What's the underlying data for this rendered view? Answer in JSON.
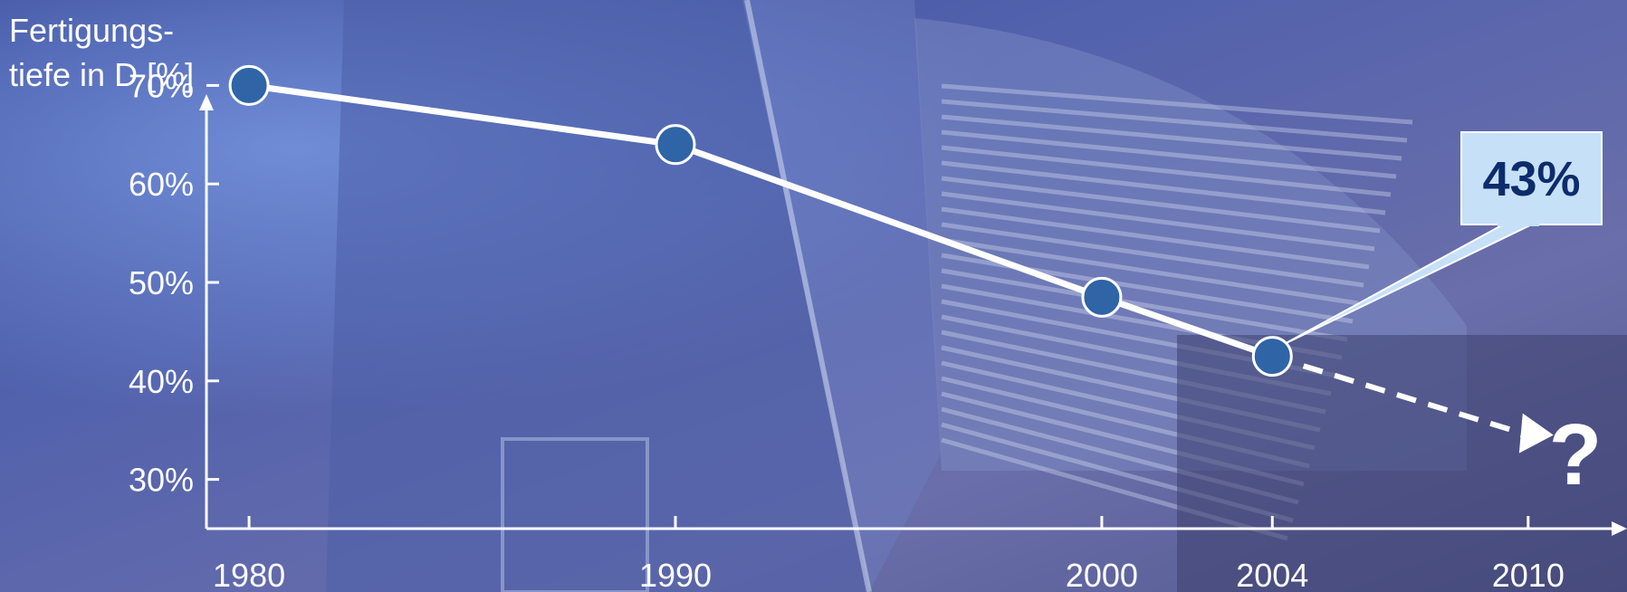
{
  "chart_data": {
    "type": "line",
    "ylabel_lines": [
      "Fertigungs-",
      "tiefe in D [%]"
    ],
    "x_ticks": [
      "1980",
      "1990",
      "2000",
      "2004",
      "2010"
    ],
    "y_ticks": [
      "30%",
      "40%",
      "50%",
      "60%",
      "70%"
    ],
    "ylim": [
      25,
      75
    ],
    "xlim": [
      1979,
      2012
    ],
    "series": [
      {
        "x": [
          1980,
          1990,
          2000,
          2004
        ],
        "y": [
          70,
          64,
          48.5,
          42.5
        ]
      }
    ],
    "trend": {
      "from": [
        2004,
        42.5
      ],
      "to": [
        2010,
        34.5
      ],
      "style": "dashed"
    },
    "callout": {
      "text": "43%",
      "target_x": 2004,
      "target_y": 42.5
    },
    "unknown_marker": "?",
    "colors": {
      "line": "#ffffff",
      "marker_fill": "#2f64a6",
      "marker_stroke": "#ffffff",
      "callout_fill": "#c6e0f8",
      "callout_text": "#0d2c6b",
      "text": "#ffffff"
    }
  }
}
